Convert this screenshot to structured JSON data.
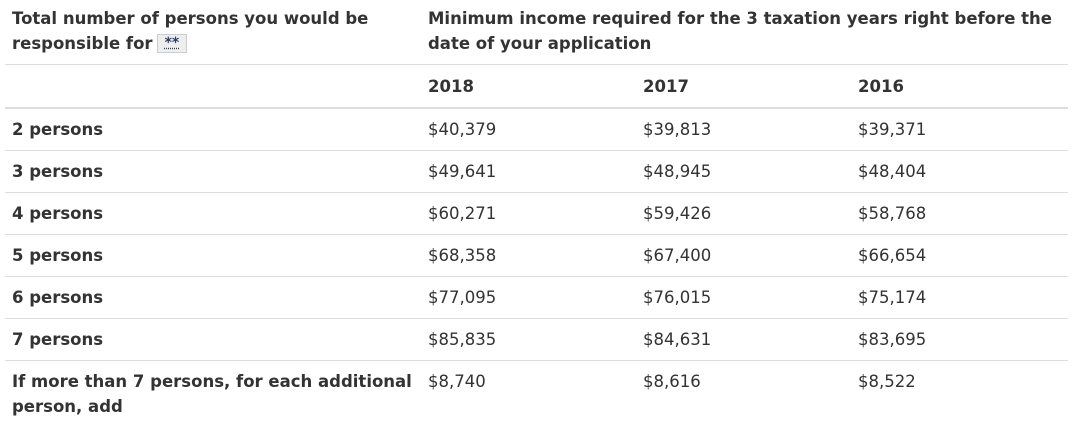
{
  "table": {
    "header": {
      "persons": "Total number of persons you would be responsible for",
      "note": "**",
      "income": "Minimum income required for the 3 taxation years right before the date of your application"
    },
    "years": [
      "2018",
      "2017",
      "2016"
    ],
    "rows": [
      [
        "2 persons",
        "$40,379",
        "$39,813",
        "$39,371"
      ],
      [
        "3 persons",
        "$49,641",
        "$48,945",
        "$48,404"
      ],
      [
        "4 persons",
        "$60,271",
        "$59,426",
        "$58,768"
      ],
      [
        "5 persons",
        "$68,358",
        "$67,400",
        "$66,654"
      ],
      [
        "6 persons",
        "$77,095",
        "$76,015",
        "$75,174"
      ],
      [
        "7 persons",
        "$85,835",
        "$84,631",
        "$83,695"
      ],
      [
        "If more than 7 persons, for each additional person, add",
        "$8,740",
        "$8,616",
        "$8,522"
      ]
    ]
  }
}
